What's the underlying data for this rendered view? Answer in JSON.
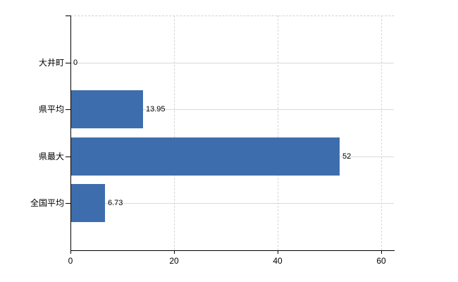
{
  "chart_data": {
    "type": "bar",
    "orientation": "horizontal",
    "title": "",
    "categories": [
      "大井町",
      "県平均",
      "県最大",
      "全国平均"
    ],
    "values": [
      0,
      13.95,
      52,
      6.73
    ],
    "value_labels": [
      "0",
      "13.95",
      "52",
      "6.73"
    ],
    "x_ticks": [
      0,
      20,
      40,
      60
    ],
    "x_tick_labels": [
      "0",
      "20",
      "40",
      "60"
    ],
    "xlim": [
      0,
      62.4
    ],
    "grid": true,
    "legend": false,
    "colors": {
      "bar": "#3e6dae",
      "axis": "#000000",
      "h_gridline": "#d5ddd5",
      "v_gridline": "#d8d4dd",
      "top_border": "#d3cfd8",
      "text": "#000000",
      "background": "#ffffff"
    }
  }
}
